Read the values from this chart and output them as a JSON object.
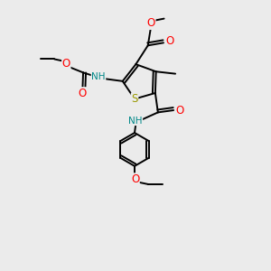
{
  "bg_color": "#ebebeb",
  "bond_color": "#000000",
  "atom_colors": {
    "S": "#999900",
    "N": "#0000cc",
    "O": "#ff0000",
    "H_N": "#008888",
    "C": "#000000"
  },
  "lw": 1.4,
  "fs": 7.5
}
